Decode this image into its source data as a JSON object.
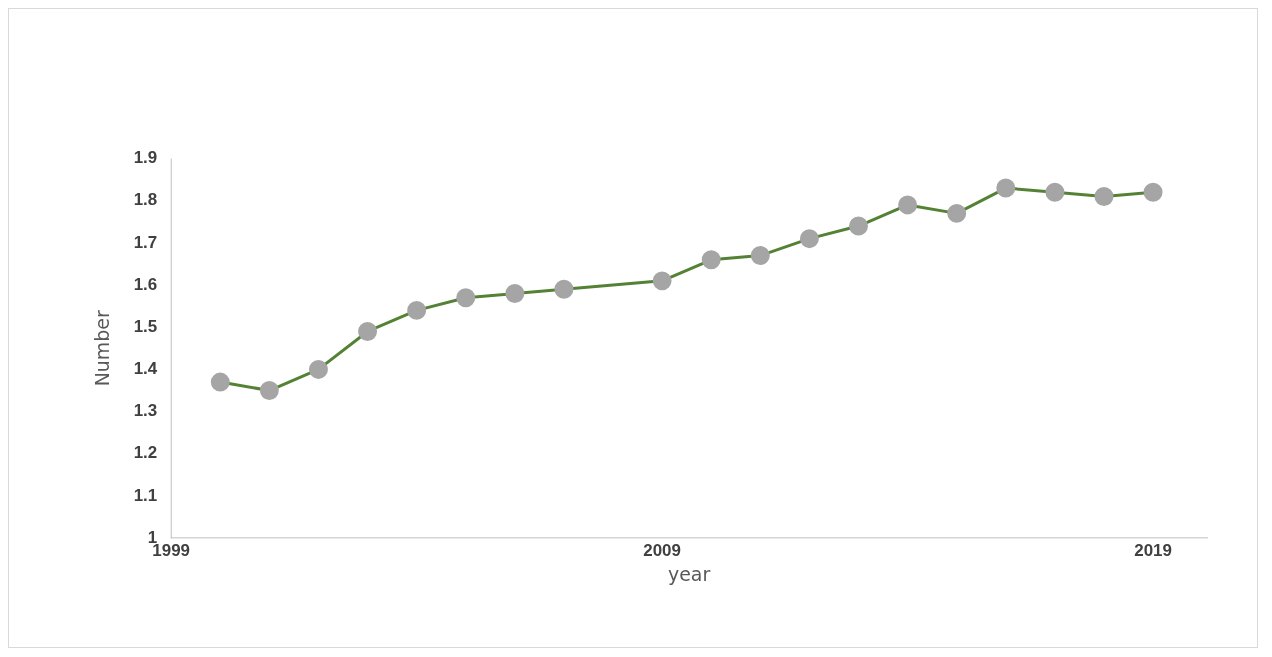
{
  "chart_data": {
    "type": "line",
    "xlabel": "year",
    "ylabel": "Number",
    "x": [
      2000,
      2001,
      2002,
      2003,
      2004,
      2005,
      2006,
      2007,
      2009,
      2010,
      2011,
      2012,
      2013,
      2014,
      2015,
      2016,
      2017,
      2018,
      2019
    ],
    "series": [
      {
        "color": "#548235",
        "values": [
          1.37,
          1.35,
          1.4,
          1.49,
          1.54,
          1.57,
          1.58,
          1.59,
          1.61,
          1.66,
          1.67,
          1.71,
          1.74,
          1.79,
          1.77,
          1.83,
          1.82,
          1.81,
          1.82
        ]
      }
    ],
    "xlim": [
      1999,
      2020.1
    ],
    "xticks": [
      1999,
      2009,
      2019
    ],
    "ylim": [
      1,
      1.9
    ],
    "yticks": [
      1,
      1.1,
      1.2,
      1.3,
      1.4,
      1.5,
      1.6,
      1.7,
      1.8,
      1.9
    ],
    "grid": false,
    "legend": false,
    "marker": "circle",
    "line_style": "solid"
  }
}
